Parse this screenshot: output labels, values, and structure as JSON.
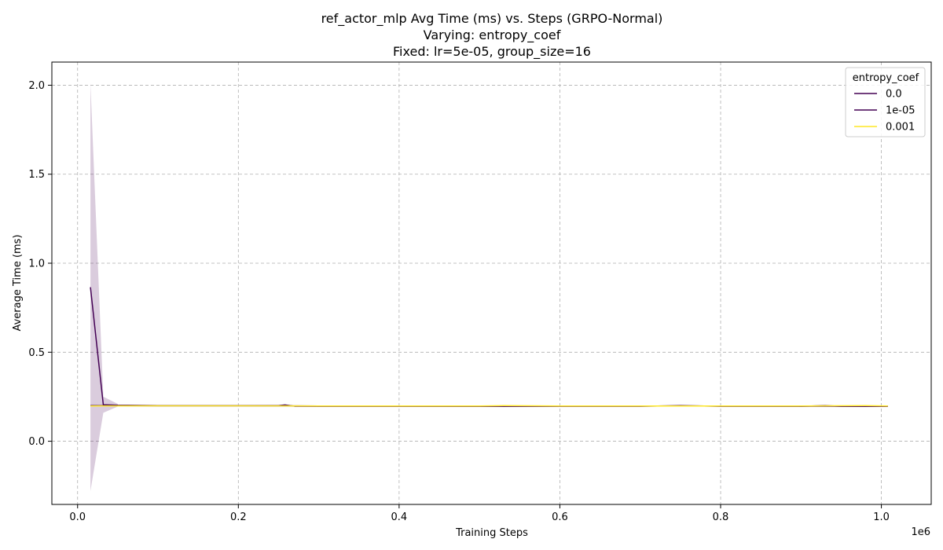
{
  "chart_data": {
    "type": "line",
    "title": [
      "ref_actor_mlp Avg Time (ms) vs. Steps (GRPO-Normal)",
      "Varying: entropy_coef",
      "Fixed: lr=5e-05, group_size=16"
    ],
    "xlabel": "Training Steps",
    "ylabel": "Average Time (ms)",
    "x_offset_label": "1e6",
    "xlim": [
      -0.032,
      1.062
    ],
    "ylim": [
      -0.355,
      2.13
    ],
    "xticks": [
      0.0,
      0.2,
      0.4,
      0.6,
      0.8,
      1.0
    ],
    "xtick_labels": [
      "0.0",
      "0.2",
      "0.4",
      "0.6",
      "0.8",
      "1.0"
    ],
    "yticks": [
      0.0,
      0.5,
      1.0,
      1.5,
      2.0
    ],
    "ytick_labels": [
      "0.0",
      "0.5",
      "1.0",
      "1.5",
      "2.0"
    ],
    "grid": true,
    "legend": {
      "title": "entropy_coef",
      "placement": "top-right"
    },
    "series": [
      {
        "name": "0.0",
        "color": "#440154",
        "x": [
          0.016,
          0.032,
          0.05,
          0.1,
          0.15,
          0.2,
          0.25,
          0.258,
          0.27,
          0.3,
          0.35,
          0.4,
          0.45,
          0.5,
          0.55,
          0.6,
          0.65,
          0.7,
          0.75,
          0.8,
          0.85,
          0.9,
          0.93,
          0.95,
          1.008
        ],
        "y": [
          0.865,
          0.205,
          0.202,
          0.2,
          0.2,
          0.2,
          0.2,
          0.204,
          0.197,
          0.196,
          0.196,
          0.196,
          0.196,
          0.196,
          0.196,
          0.196,
          0.196,
          0.196,
          0.2,
          0.196,
          0.196,
          0.196,
          0.2,
          0.196,
          0.196
        ],
        "band_x": [
          0.016,
          0.032,
          0.05
        ],
        "band_low": [
          -0.28,
          0.16,
          0.195
        ],
        "band_high": [
          2.01,
          0.25,
          0.21
        ]
      },
      {
        "name": "1e-05",
        "color": "#440154",
        "x": [
          0.016,
          0.1,
          0.2,
          0.3,
          0.4,
          0.5,
          0.6,
          0.7,
          0.8,
          0.9,
          1.008
        ],
        "y": [
          0.2,
          0.199,
          0.199,
          0.198,
          0.198,
          0.197,
          0.198,
          0.198,
          0.198,
          0.197,
          0.197
        ]
      },
      {
        "name": "0.001",
        "color": "#fde725",
        "x": [
          0.016,
          0.1,
          0.2,
          0.3,
          0.4,
          0.5,
          0.53,
          0.6,
          0.7,
          0.8,
          0.9,
          0.98,
          1.008
        ],
        "y": [
          0.198,
          0.199,
          0.199,
          0.198,
          0.198,
          0.198,
          0.2,
          0.198,
          0.198,
          0.198,
          0.198,
          0.2,
          0.198
        ]
      }
    ]
  }
}
